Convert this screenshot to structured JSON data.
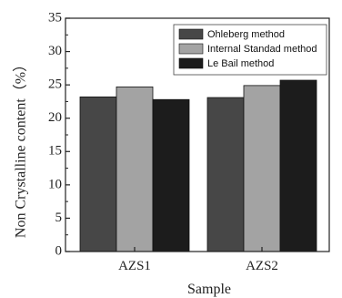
{
  "chart_data": {
    "type": "bar",
    "categories": [
      "AZS1",
      "AZS2"
    ],
    "series": [
      {
        "name": "Ohleberg method",
        "values": [
          23.2,
          23.1
        ],
        "color": "#474747"
      },
      {
        "name": "Internal Standad method",
        "values": [
          24.7,
          24.9
        ],
        "color": "#a3a3a3"
      },
      {
        "name": "Le Bail method",
        "values": [
          22.8,
          25.7
        ],
        "color": "#1c1c1c"
      }
    ],
    "xlabel": "Sample",
    "ylabel": "Non Crystalline content（%）",
    "ylim": [
      0,
      35
    ],
    "yticks": [
      0,
      5,
      10,
      15,
      20,
      25,
      30,
      35
    ],
    "legend_position": "top-right",
    "grid": false
  }
}
